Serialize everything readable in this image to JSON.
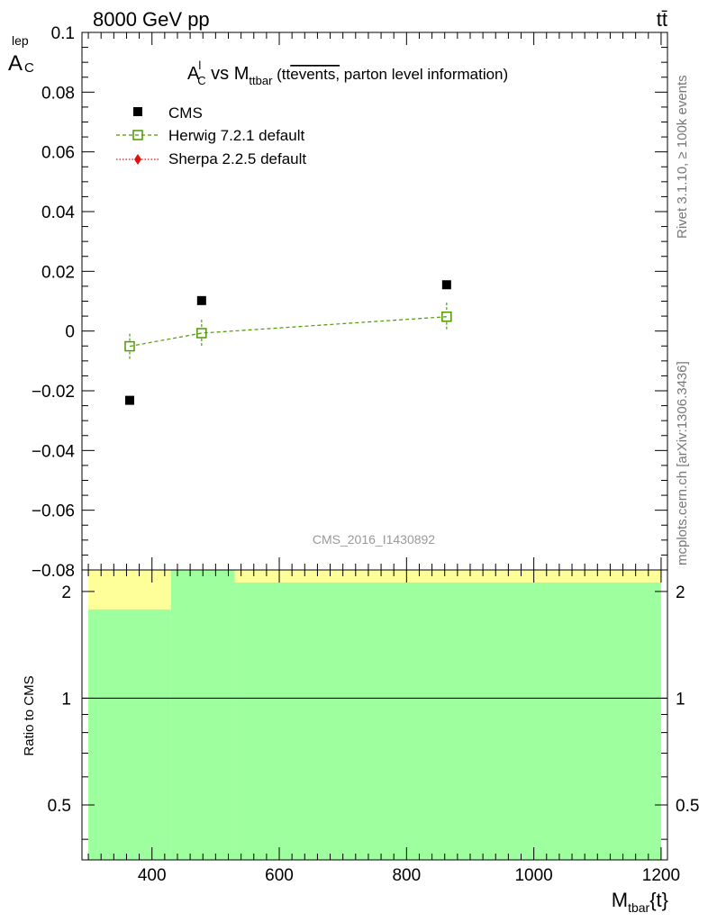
{
  "header": {
    "left": "8000 GeV pp",
    "right": "tt̄"
  },
  "plot_title": {
    "a": "A",
    "a_sup": "l",
    "a_sub": "C",
    "vs": " vs M",
    "m_sub": "ttbar",
    "paren_open": " (tt",
    "overline": "events,",
    "rest": " parton level information)"
  },
  "analysis_label": "CMS_2016_I1430892",
  "side_labels": {
    "rivet": "Rivet 3.1.10, ≥ 100k events",
    "mcplots": "mcplots.cern.ch [arXiv:1306.3436]"
  },
  "colors": {
    "herwig": "#4c9a00",
    "sherpa": "#e01010",
    "band_inner": "#9dff9d",
    "band_outer": "#ffff99"
  },
  "chart_data": [
    {
      "type": "scatter",
      "ylabel": {
        "main": "A",
        "sup": "lep",
        "sub": "C"
      },
      "ylim": [
        -0.08,
        0.1
      ],
      "xlim": [
        290,
        1210
      ],
      "yticks": [
        -0.08,
        -0.06,
        -0.04,
        -0.02,
        0,
        0.02,
        0.04,
        0.06,
        0.08,
        0.1
      ],
      "ytick_labels": [
        "−0.08",
        "−0.06",
        "−0.04",
        "−0.02",
        "0",
        "0.02",
        "0.04",
        "0.06",
        "0.08",
        "0.1"
      ],
      "legend_placement": "top-left",
      "series": [
        {
          "name": "CMS",
          "x": [
            365,
            478,
            863
          ],
          "y": [
            -0.0232,
            0.0102,
            0.0155
          ]
        },
        {
          "name": "Herwig 7.2.1 default",
          "x": [
            365,
            478,
            863
          ],
          "y": [
            -0.0051,
            -0.0007,
            0.0048
          ],
          "yerr": [
            0.0042,
            0.0045,
            0.0047
          ]
        },
        {
          "name": "Sherpa 2.2.5 default",
          "x": [],
          "y": []
        }
      ]
    },
    {
      "type": "area",
      "ylabel": "Ratio to CMS",
      "yscale": "log",
      "ylim": [
        0.35,
        2.3
      ],
      "xlim": [
        290,
        1210
      ],
      "yticks": [
        0.5,
        1,
        2
      ],
      "ytick_labels": [
        "0.5",
        "1",
        "2"
      ],
      "xticks": [
        400,
        600,
        800,
        1000,
        1200
      ],
      "xtick_labels": [
        "400",
        "600",
        "800",
        "1000",
        "1200"
      ],
      "xlabel": {
        "main": "M",
        "sub": "tbar",
        "rest": "{t}"
      },
      "reference_line": 1,
      "bins": [
        {
          "xlow": 300,
          "xhigh": 430,
          "inner": [
            0.35,
            1.78
          ],
          "outer": [
            0.35,
            2.3
          ]
        },
        {
          "xlow": 430,
          "xhigh": 530,
          "inner": [
            0.35,
            2.3
          ],
          "outer": [
            0.35,
            2.3
          ]
        },
        {
          "xlow": 530,
          "xhigh": 1200,
          "inner": [
            0.35,
            2.12
          ],
          "outer": [
            0.35,
            2.3
          ]
        }
      ]
    }
  ]
}
